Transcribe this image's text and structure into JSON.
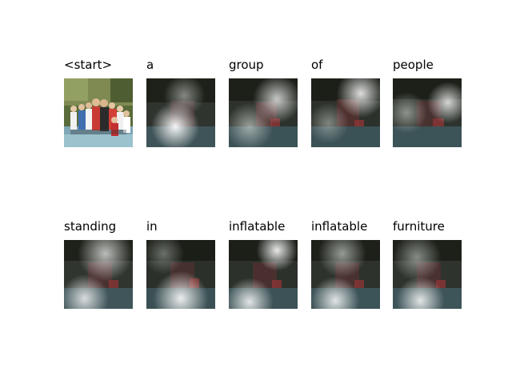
{
  "figure": {
    "rows": [
      {
        "panels": [
          {
            "word": "<start>",
            "image": "original-photo-group-of-people"
          },
          {
            "word": "a",
            "image": "attention-overlay"
          },
          {
            "word": "group",
            "image": "attention-overlay"
          },
          {
            "word": "of",
            "image": "attention-overlay"
          },
          {
            "word": "people",
            "image": "attention-overlay"
          }
        ]
      },
      {
        "panels": [
          {
            "word": "standing",
            "image": "attention-overlay"
          },
          {
            "word": "in",
            "image": "attention-overlay"
          },
          {
            "word": "inflatable",
            "image": "attention-overlay"
          },
          {
            "word": "inflatable",
            "image": "attention-overlay"
          },
          {
            "word": "furniture",
            "image": "attention-overlay"
          }
        ]
      }
    ]
  }
}
